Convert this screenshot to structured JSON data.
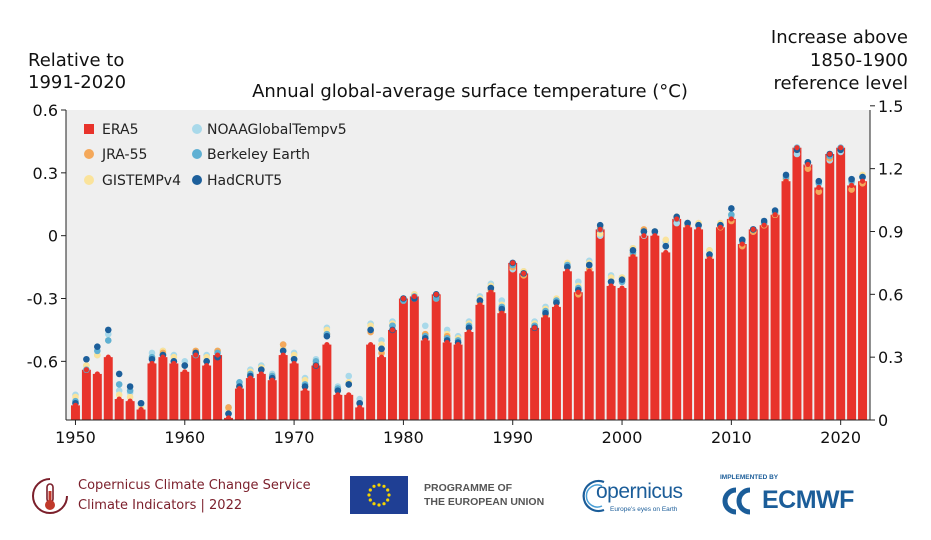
{
  "chart_data": {
    "type": "bar",
    "title": "Annual global-average surface temperature (°C)",
    "left_axis_label": [
      "Relative to",
      "1991-2020"
    ],
    "right_axis_label": [
      "Increase above",
      "1850-1900",
      "reference level"
    ],
    "x_range": [
      1950,
      2022
    ],
    "ylim": [
      -0.88,
      0.6
    ],
    "y_ticks_left": [
      {
        "v": 0.6,
        "t": "0.6"
      },
      {
        "v": 0.3,
        "t": "0.3"
      },
      {
        "v": 0,
        "t": "0"
      },
      {
        "v": -0.3,
        "t": "-0.3"
      },
      {
        "v": -0.6,
        "t": "-0.6"
      }
    ],
    "right_offset": 0.88,
    "y_ticks_right": [
      {
        "v": 1.5,
        "t": "1.5"
      },
      {
        "v": 1.2,
        "t": "1.2"
      },
      {
        "v": 0.9,
        "t": "0.9"
      },
      {
        "v": 0.6,
        "t": "0.6"
      },
      {
        "v": 0.3,
        "t": "0.3"
      },
      {
        "v": 0,
        "t": "0"
      }
    ],
    "x_ticks": [
      {
        "v": 1950,
        "t": "1950"
      },
      {
        "v": 1960,
        "t": "1960"
      },
      {
        "v": 1970,
        "t": "1970"
      },
      {
        "v": 1980,
        "t": "1980"
      },
      {
        "v": 1990,
        "t": "1990"
      },
      {
        "v": 2000,
        "t": "2000"
      },
      {
        "v": 2010,
        "t": "2010"
      },
      {
        "v": 2020,
        "t": "2020"
      }
    ],
    "legend_placement": "top-left",
    "legend": [
      {
        "name": "ERA5",
        "color": "#e8332b",
        "shape": "square"
      },
      {
        "name": "JRA-55",
        "color": "#f4a85a",
        "shape": "dot"
      },
      {
        "name": "GISTEMPv4",
        "color": "#fae39b",
        "shape": "dot"
      },
      {
        "name": "NOAAGlobalTempv5",
        "color": "#a9d9ea",
        "shape": "dot"
      },
      {
        "name": "Berkeley Earth",
        "color": "#5fb0d3",
        "shape": "dot"
      },
      {
        "name": "HadCRUT5",
        "color": "#1c5f9b",
        "shape": "dot"
      }
    ],
    "series": [
      {
        "name": "ERA5",
        "x": [
          1950,
          1951,
          1952,
          1953,
          1954,
          1955,
          1956,
          1957,
          1958,
          1959,
          1960,
          1961,
          1962,
          1963,
          1964,
          1965,
          1966,
          1967,
          1968,
          1969,
          1970,
          1971,
          1972,
          1973,
          1974,
          1975,
          1976,
          1977,
          1978,
          1979,
          1980,
          1981,
          1982,
          1983,
          1984,
          1985,
          1986,
          1987,
          1988,
          1989,
          1990,
          1991,
          1992,
          1993,
          1994,
          1995,
          1996,
          1997,
          1998,
          1999,
          2000,
          2001,
          2002,
          2003,
          2004,
          2005,
          2006,
          2007,
          2008,
          2009,
          2010,
          2011,
          2012,
          2013,
          2014,
          2015,
          2016,
          2017,
          2018,
          2019,
          2020,
          2021,
          2022
        ],
        "values": [
          -0.81,
          -0.64,
          -0.66,
          -0.58,
          -0.78,
          -0.79,
          -0.83,
          -0.61,
          -0.58,
          -0.61,
          -0.65,
          -0.57,
          -0.62,
          -0.57,
          -0.87,
          -0.73,
          -0.68,
          -0.66,
          -0.69,
          -0.57,
          -0.61,
          -0.74,
          -0.62,
          -0.52,
          -0.76,
          -0.76,
          -0.82,
          -0.52,
          -0.58,
          -0.45,
          -0.3,
          -0.29,
          -0.5,
          -0.28,
          -0.51,
          -0.52,
          -0.46,
          -0.33,
          -0.27,
          -0.37,
          -0.13,
          -0.18,
          -0.44,
          -0.39,
          -0.34,
          -0.17,
          -0.27,
          -0.17,
          0.03,
          -0.24,
          -0.25,
          -0.1,
          0.0,
          0.0,
          -0.08,
          0.08,
          0.04,
          0.03,
          -0.11,
          0.04,
          0.08,
          -0.04,
          0.03,
          0.05,
          0.1,
          0.26,
          0.42,
          0.34,
          0.23,
          0.39,
          0.42,
          0.24,
          0.26
        ]
      },
      {
        "name": "JRA-55",
        "x": [
          1958,
          1959,
          1960,
          1961,
          1962,
          1963,
          1964,
          1965,
          1966,
          1967,
          1968,
          1969,
          1970,
          1971,
          1972,
          1973,
          1974,
          1975,
          1976,
          1977,
          1978,
          1979,
          1980,
          1981,
          1982,
          1983,
          1984,
          1985,
          1986,
          1987,
          1988,
          1989,
          1990,
          1991,
          1992,
          1993,
          1994,
          1995,
          1996,
          1997,
          1998,
          1999,
          2000,
          2001,
          2002,
          2003,
          2004,
          2005,
          2006,
          2007,
          2008,
          2009,
          2010,
          2011,
          2012,
          2013,
          2014,
          2015,
          2016,
          2017,
          2018,
          2019,
          2020,
          2021,
          2022
        ],
        "values": [
          -0.56,
          -0.6,
          -0.62,
          -0.55,
          -0.6,
          -0.55,
          -0.82,
          -0.72,
          -0.66,
          -0.64,
          -0.67,
          -0.52,
          -0.59,
          -0.72,
          -0.61,
          -0.47,
          -0.73,
          -0.71,
          -0.8,
          -0.46,
          -0.56,
          -0.43,
          -0.31,
          -0.3,
          -0.47,
          -0.3,
          -0.48,
          -0.51,
          -0.44,
          -0.32,
          -0.26,
          -0.36,
          -0.15,
          -0.19,
          -0.43,
          -0.38,
          -0.32,
          -0.15,
          -0.28,
          -0.16,
          0.04,
          -0.22,
          -0.22,
          -0.09,
          0.03,
          0.02,
          -0.05,
          0.09,
          0.05,
          0.05,
          -0.1,
          0.04,
          0.07,
          -0.05,
          0.02,
          0.05,
          0.1,
          0.27,
          0.41,
          0.32,
          0.21,
          0.37,
          0.41,
          0.22,
          0.25
        ]
      },
      {
        "name": "GISTEMPv4",
        "x": [
          1950,
          1951,
          1952,
          1953,
          1954,
          1955,
          1956,
          1957,
          1958,
          1959,
          1960,
          1961,
          1962,
          1963,
          1964,
          1965,
          1966,
          1967,
          1968,
          1969,
          1970,
          1971,
          1972,
          1973,
          1974,
          1975,
          1976,
          1977,
          1978,
          1979,
          1980,
          1981,
          1982,
          1983,
          1984,
          1985,
          1986,
          1987,
          1988,
          1989,
          1990,
          1991,
          1992,
          1993,
          1994,
          1995,
          1996,
          1997,
          1998,
          1999,
          2000,
          2001,
          2002,
          2003,
          2004,
          2005,
          2006,
          2007,
          2008,
          2009,
          2010,
          2011,
          2012,
          2013,
          2014,
          2015,
          2016,
          2017,
          2018,
          2019,
          2020,
          2021,
          2022
        ],
        "values": [
          -0.77,
          -0.62,
          -0.57,
          -0.5,
          -0.76,
          -0.77,
          -0.82,
          -0.58,
          -0.55,
          -0.58,
          -0.62,
          -0.55,
          -0.58,
          -0.55,
          -0.83,
          -0.72,
          -0.65,
          -0.63,
          -0.67,
          -0.54,
          -0.57,
          -0.69,
          -0.6,
          -0.45,
          -0.74,
          -0.7,
          -0.8,
          -0.43,
          -0.52,
          -0.42,
          -0.3,
          -0.28,
          -0.47,
          -0.29,
          -0.47,
          -0.49,
          -0.42,
          -0.3,
          -0.24,
          -0.33,
          -0.15,
          -0.17,
          -0.42,
          -0.35,
          -0.3,
          -0.13,
          -0.24,
          -0.13,
          0.01,
          -0.2,
          -0.2,
          -0.06,
          0.02,
          0.02,
          -0.02,
          0.08,
          0.06,
          0.06,
          -0.07,
          0.06,
          0.1,
          -0.02,
          0.02,
          0.06,
          0.11,
          0.28,
          0.41,
          0.35,
          0.26,
          0.37,
          0.41,
          0.26,
          0.29
        ]
      },
      {
        "name": "NOAAGlobalTempv5",
        "x": [
          1950,
          1951,
          1952,
          1953,
          1954,
          1955,
          1956,
          1957,
          1958,
          1959,
          1960,
          1961,
          1962,
          1963,
          1964,
          1965,
          1966,
          1967,
          1968,
          1969,
          1970,
          1971,
          1972,
          1973,
          1974,
          1975,
          1976,
          1977,
          1978,
          1979,
          1980,
          1981,
          1982,
          1983,
          1984,
          1985,
          1986,
          1987,
          1988,
          1989,
          1990,
          1991,
          1992,
          1993,
          1994,
          1995,
          1996,
          1997,
          1998,
          1999,
          2000,
          2001,
          2002,
          2003,
          2004,
          2005,
          2006,
          2007,
          2008,
          2009,
          2010,
          2011,
          2012,
          2013,
          2014,
          2015,
          2016,
          2017,
          2018,
          2019,
          2020,
          2021,
          2022
        ],
        "values": [
          -0.76,
          -0.62,
          -0.57,
          -0.47,
          -0.74,
          -0.75,
          -0.81,
          -0.56,
          -0.55,
          -0.57,
          -0.6,
          -0.56,
          -0.57,
          -0.55,
          -0.82,
          -0.71,
          -0.64,
          -0.62,
          -0.66,
          -0.52,
          -0.56,
          -0.68,
          -0.59,
          -0.44,
          -0.72,
          -0.67,
          -0.78,
          -0.42,
          -0.5,
          -0.41,
          -0.3,
          -0.28,
          -0.43,
          -0.28,
          -0.45,
          -0.48,
          -0.41,
          -0.29,
          -0.23,
          -0.31,
          -0.16,
          -0.17,
          -0.41,
          -0.34,
          -0.31,
          -0.14,
          -0.22,
          -0.12,
          0.0,
          -0.19,
          -0.2,
          -0.06,
          0.0,
          0.01,
          -0.03,
          0.06,
          0.05,
          0.04,
          -0.07,
          0.05,
          0.09,
          -0.02,
          0.02,
          0.05,
          0.1,
          0.27,
          0.39,
          0.34,
          0.25,
          0.36,
          0.4,
          0.25,
          0.28
        ]
      },
      {
        "name": "Berkeley Earth",
        "x": [
          1950,
          1951,
          1952,
          1953,
          1954,
          1955,
          1956,
          1957,
          1958,
          1959,
          1960,
          1961,
          1962,
          1963,
          1964,
          1965,
          1966,
          1967,
          1968,
          1969,
          1970,
          1971,
          1972,
          1973,
          1974,
          1975,
          1976,
          1977,
          1978,
          1979,
          1980,
          1981,
          1982,
          1983,
          1984,
          1985,
          1986,
          1987,
          1988,
          1989,
          1990,
          1991,
          1992,
          1993,
          1994,
          1995,
          1996,
          1997,
          1998,
          1999,
          2000,
          2001,
          2002,
          2003,
          2004,
          2005,
          2006,
          2007,
          2008,
          2009,
          2010,
          2011,
          2012,
          2013,
          2014,
          2015,
          2016,
          2017,
          2018,
          2019,
          2020,
          2021,
          2022
        ],
        "values": [
          -0.79,
          -0.64,
          -0.55,
          -0.5,
          -0.71,
          -0.74,
          -0.8,
          -0.58,
          -0.57,
          -0.6,
          -0.62,
          -0.57,
          -0.6,
          -0.56,
          -0.85,
          -0.7,
          -0.66,
          -0.64,
          -0.67,
          -0.55,
          -0.59,
          -0.71,
          -0.6,
          -0.47,
          -0.73,
          -0.71,
          -0.8,
          -0.45,
          -0.54,
          -0.43,
          -0.31,
          -0.29,
          -0.48,
          -0.3,
          -0.49,
          -0.5,
          -0.43,
          -0.31,
          -0.25,
          -0.34,
          -0.14,
          -0.18,
          -0.43,
          -0.36,
          -0.31,
          -0.14,
          -0.25,
          -0.14,
          0.03,
          -0.22,
          -0.22,
          -0.08,
          0.02,
          0.02,
          -0.05,
          0.08,
          0.06,
          0.05,
          -0.09,
          0.05,
          0.1,
          -0.03,
          0.03,
          0.06,
          0.11,
          0.28,
          0.42,
          0.35,
          0.25,
          0.38,
          0.42,
          0.26,
          0.28
        ]
      },
      {
        "name": "HadCRUT5",
        "x": [
          1950,
          1951,
          1952,
          1953,
          1954,
          1955,
          1956,
          1957,
          1958,
          1959,
          1960,
          1961,
          1962,
          1963,
          1964,
          1965,
          1966,
          1967,
          1968,
          1969,
          1970,
          1971,
          1972,
          1973,
          1974,
          1975,
          1976,
          1977,
          1978,
          1979,
          1980,
          1981,
          1982,
          1983,
          1984,
          1985,
          1986,
          1987,
          1988,
          1989,
          1990,
          1991,
          1992,
          1993,
          1994,
          1995,
          1996,
          1997,
          1998,
          1999,
          2000,
          2001,
          2002,
          2003,
          2004,
          2005,
          2006,
          2007,
          2008,
          2009,
          2010,
          2011,
          2012,
          2013,
          2014,
          2015,
          2016,
          2017,
          2018,
          2019,
          2020,
          2021,
          2022
        ],
        "values": [
          -0.8,
          -0.59,
          -0.53,
          -0.45,
          -0.66,
          -0.72,
          -0.8,
          -0.59,
          -0.57,
          -0.6,
          -0.62,
          -0.56,
          -0.6,
          -0.58,
          -0.85,
          -0.72,
          -0.67,
          -0.64,
          -0.68,
          -0.55,
          -0.59,
          -0.72,
          -0.62,
          -0.48,
          -0.74,
          -0.71,
          -0.8,
          -0.45,
          -0.54,
          -0.45,
          -0.3,
          -0.3,
          -0.49,
          -0.28,
          -0.5,
          -0.51,
          -0.44,
          -0.31,
          -0.25,
          -0.35,
          -0.13,
          -0.18,
          -0.44,
          -0.37,
          -0.32,
          -0.15,
          -0.26,
          -0.14,
          0.05,
          -0.22,
          -0.21,
          -0.07,
          0.02,
          0.02,
          -0.05,
          0.09,
          0.06,
          0.05,
          -0.09,
          0.05,
          0.13,
          -0.02,
          0.03,
          0.07,
          0.12,
          0.29,
          0.41,
          0.35,
          0.26,
          0.39,
          0.41,
          0.27,
          0.28
        ]
      }
    ]
  },
  "footer": {
    "c3s_line1": "Copernicus Climate Change Service",
    "c3s_line2": "Climate Indicators | 2022",
    "eu_line1": "PROGRAMME OF",
    "eu_line2": "THE EUROPEAN UNION",
    "copernicus_logo_text": "opernicus",
    "copernicus_tagline": "Europe's eyes on Earth",
    "implemented_by": "IMPLEMENTED BY",
    "ecmwf_logo_text": "ECMWF"
  }
}
